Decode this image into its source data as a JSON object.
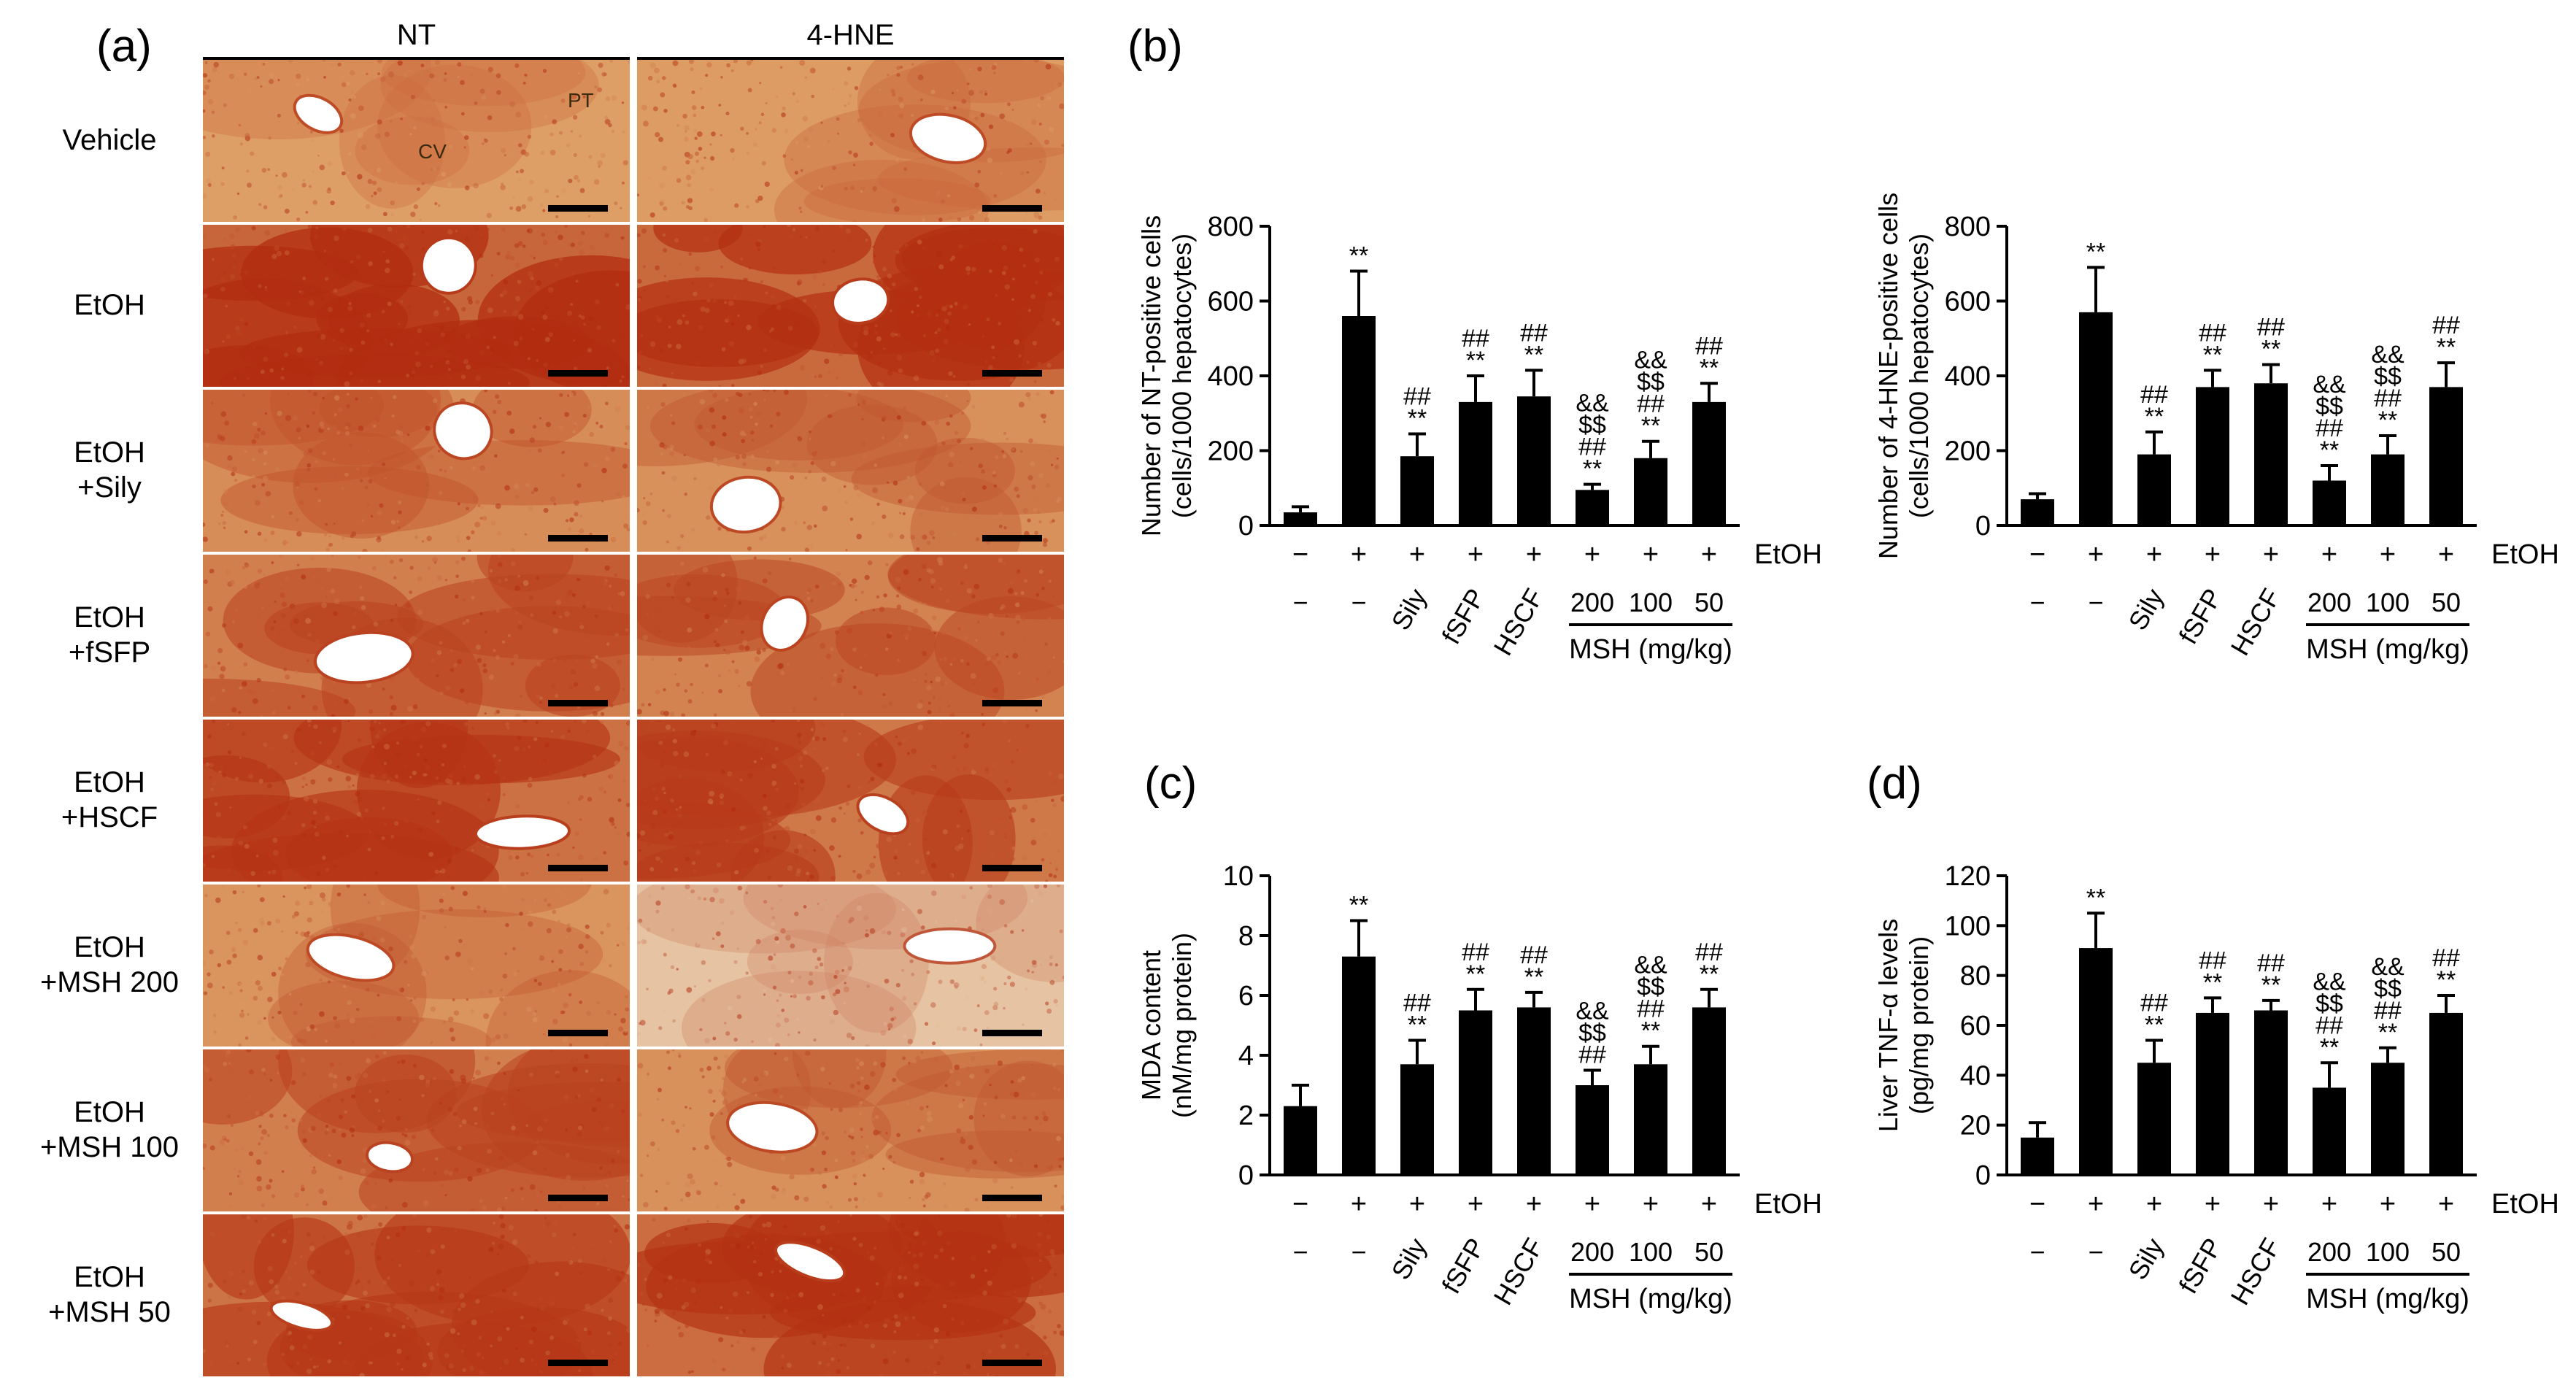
{
  "panel_labels": {
    "a": "(a)",
    "b": "(b)",
    "c": "(c)",
    "d": "(d)"
  },
  "histology": {
    "columns": [
      "NT",
      "4-HNE"
    ],
    "rows": [
      {
        "line1": "Vehicle",
        "line2": ""
      },
      {
        "line1": "EtOH",
        "line2": ""
      },
      {
        "line1": "EtOH",
        "line2": "+Sily"
      },
      {
        "line1": "EtOH",
        "line2": "+fSFP"
      },
      {
        "line1": "EtOH",
        "line2": "+HSCF"
      },
      {
        "line1": "EtOH",
        "line2": "+MSH 200"
      },
      {
        "line1": "EtOH",
        "line2": "+MSH 100"
      },
      {
        "line1": "EtOH",
        "line2": "+MSH 50"
      }
    ],
    "tile_tags": {
      "pt": "PT",
      "cv": "CV"
    },
    "stain_intensity": [
      [
        0.15,
        0.2
      ],
      [
        0.95,
        0.9
      ],
      [
        0.4,
        0.35
      ],
      [
        0.6,
        0.55
      ],
      [
        0.8,
        0.7
      ],
      [
        0.3,
        0.15
      ],
      [
        0.6,
        0.35
      ],
      [
        0.75,
        0.85
      ]
    ]
  },
  "chart_data": [
    {
      "id": "b1",
      "type": "bar",
      "ylabel": [
        "Number of NT-positive cells",
        "(cells/1000 hepatocytes)"
      ],
      "ylim": [
        0,
        800
      ],
      "yticks": [
        0,
        200,
        400,
        600,
        800
      ],
      "values": [
        35,
        560,
        185,
        330,
        345,
        95,
        180,
        330
      ],
      "errors": [
        15,
        120,
        60,
        70,
        70,
        15,
        45,
        50
      ],
      "annotations": [
        [],
        [
          "**"
        ],
        [
          "##",
          "**"
        ],
        [
          "##",
          "**"
        ],
        [
          "##",
          "**"
        ],
        [
          "&&",
          "$$",
          "##",
          "**"
        ],
        [
          "&&",
          "$$",
          "##",
          "**"
        ],
        [
          "##",
          "**"
        ]
      ],
      "etoh_row": [
        "−",
        "+",
        "+",
        "+",
        "+",
        "+",
        "+",
        "+"
      ],
      "etoh_label": "EtOH",
      "treatments": [
        "−",
        "−",
        "Sily",
        "fSFP",
        "HSCF",
        "200",
        "100",
        "50"
      ],
      "group_label": "MSH (mg/kg)"
    },
    {
      "id": "b2",
      "type": "bar",
      "ylabel": [
        "Number of 4-HNE-positive cells",
        "(cells/1000 hepatocytes)"
      ],
      "ylim": [
        0,
        800
      ],
      "yticks": [
        0,
        200,
        400,
        600,
        800
      ],
      "values": [
        70,
        570,
        190,
        370,
        380,
        120,
        190,
        370
      ],
      "errors": [
        15,
        120,
        60,
        45,
        50,
        40,
        50,
        65
      ],
      "annotations": [
        [],
        [
          "**"
        ],
        [
          "##",
          "**"
        ],
        [
          "##",
          "**"
        ],
        [
          "##",
          "**"
        ],
        [
          "&&",
          "$$",
          "##",
          "**"
        ],
        [
          "&&",
          "$$",
          "##",
          "**"
        ],
        [
          "##",
          "**"
        ]
      ],
      "etoh_row": [
        "−",
        "+",
        "+",
        "+",
        "+",
        "+",
        "+",
        "+"
      ],
      "etoh_label": "EtOH",
      "treatments": [
        "−",
        "−",
        "Sily",
        "fSFP",
        "HSCF",
        "200",
        "100",
        "50"
      ],
      "group_label": "MSH (mg/kg)"
    },
    {
      "id": "c",
      "type": "bar",
      "ylabel": [
        "MDA content",
        "(nM/mg protein)"
      ],
      "ylim": [
        0,
        10
      ],
      "yticks": [
        0,
        2,
        4,
        6,
        8,
        10
      ],
      "values": [
        2.3,
        7.3,
        3.7,
        5.5,
        5.6,
        3.0,
        3.7,
        5.6
      ],
      "errors": [
        0.7,
        1.2,
        0.8,
        0.7,
        0.5,
        0.5,
        0.6,
        0.6
      ],
      "annotations": [
        [],
        [
          "**"
        ],
        [
          "##",
          "**"
        ],
        [
          "##",
          "**"
        ],
        [
          "##",
          "**"
        ],
        [
          "&&",
          "$$",
          "##"
        ],
        [
          "&&",
          "$$",
          "##",
          "**"
        ],
        [
          "##",
          "**"
        ]
      ],
      "etoh_row": [
        "−",
        "+",
        "+",
        "+",
        "+",
        "+",
        "+",
        "+"
      ],
      "etoh_label": "EtOH",
      "treatments": [
        "−",
        "−",
        "Sily",
        "fSFP",
        "HSCF",
        "200",
        "100",
        "50"
      ],
      "group_label": "MSH (mg/kg)"
    },
    {
      "id": "d",
      "type": "bar",
      "ylabel": [
        "Liver TNF-α levels",
        "(pg/mg protein)"
      ],
      "ylim": [
        0,
        120
      ],
      "yticks": [
        0,
        20,
        40,
        60,
        80,
        100,
        120
      ],
      "values": [
        15,
        91,
        45,
        65,
        66,
        35,
        45,
        65
      ],
      "errors": [
        6,
        14,
        9,
        6,
        4,
        10,
        6,
        7
      ],
      "annotations": [
        [],
        [
          "**"
        ],
        [
          "##",
          "**"
        ],
        [
          "##",
          "**"
        ],
        [
          "##",
          "**"
        ],
        [
          "&&",
          "$$",
          "##",
          "**"
        ],
        [
          "&&",
          "$$",
          "##",
          "**"
        ],
        [
          "##",
          "**"
        ]
      ],
      "etoh_row": [
        "−",
        "+",
        "+",
        "+",
        "+",
        "+",
        "+",
        "+"
      ],
      "etoh_label": "EtOH",
      "treatments": [
        "−",
        "−",
        "Sily",
        "fSFP",
        "HSCF",
        "200",
        "100",
        "50"
      ],
      "group_label": "MSH (mg/kg)"
    }
  ]
}
